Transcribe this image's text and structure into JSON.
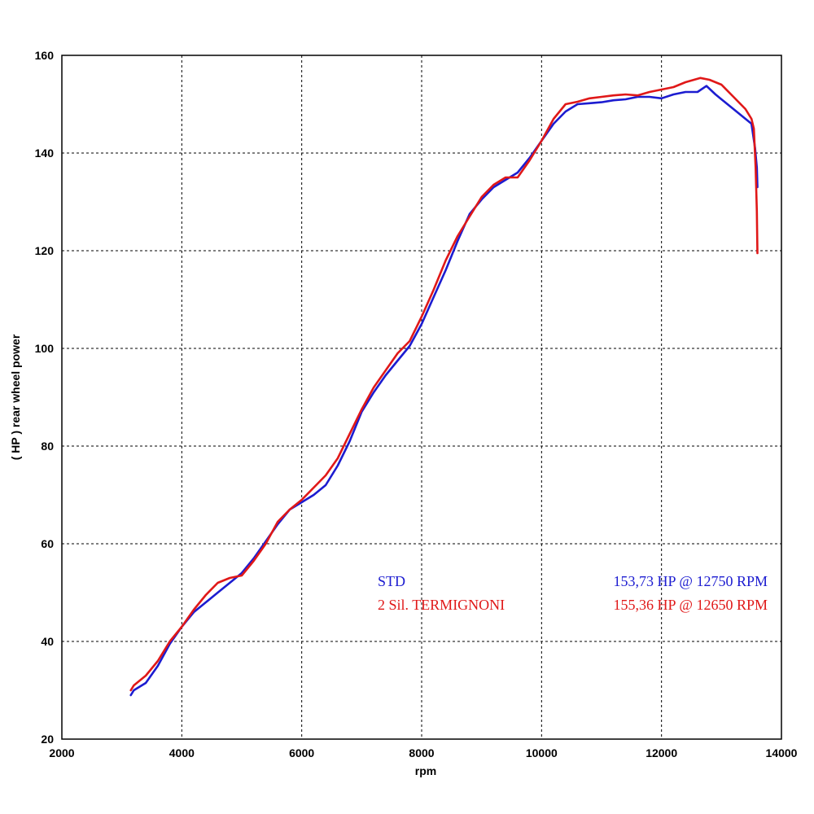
{
  "chart_data": {
    "type": "line",
    "xlabel": "rpm",
    "ylabel": "( HP )  rear wheel power",
    "xlim": [
      2000,
      14000
    ],
    "ylim": [
      20,
      160
    ],
    "xticks": [
      2000,
      4000,
      6000,
      8000,
      10000,
      12000,
      14000
    ],
    "yticks": [
      20,
      40,
      60,
      80,
      100,
      120,
      140,
      160
    ],
    "grid": true,
    "series": [
      {
        "name": "STD",
        "peak_label": "153,73 HP @ 12750 RPM",
        "color": "#1c1cd0",
        "x": [
          3150,
          3200,
          3400,
          3600,
          3800,
          4000,
          4200,
          4400,
          4600,
          4800,
          5000,
          5200,
          5400,
          5600,
          5800,
          6000,
          6200,
          6400,
          6600,
          6800,
          7000,
          7200,
          7400,
          7600,
          7800,
          8000,
          8200,
          8400,
          8600,
          8800,
          9000,
          9200,
          9400,
          9600,
          9800,
          10000,
          10200,
          10400,
          10600,
          10800,
          11000,
          11200,
          11400,
          11600,
          11800,
          12000,
          12200,
          12400,
          12600,
          12750,
          12900,
          13000,
          13200,
          13400,
          13500,
          13560,
          13590,
          13600
        ],
        "values": [
          29,
          30,
          31.5,
          35,
          39.5,
          43,
          46,
          48,
          50,
          52,
          54,
          57,
          60.5,
          64,
          67,
          68.5,
          70,
          72,
          76,
          81,
          87,
          91,
          94.5,
          97.5,
          100.5,
          105,
          110.5,
          116,
          122,
          127.5,
          130.5,
          133,
          134.5,
          136,
          139,
          142.5,
          146,
          148.5,
          150,
          150.2,
          150.4,
          150.8,
          151,
          151.5,
          151.5,
          151.2,
          152,
          152.5,
          152.5,
          153.73,
          152,
          151,
          149,
          147,
          146,
          141,
          137,
          133
        ]
      },
      {
        "name": "2 Sil. TERMIGNONI",
        "peak_label": "155,36 HP @ 12650 RPM",
        "color": "#e01818",
        "x": [
          3150,
          3200,
          3400,
          3600,
          3800,
          4000,
          4200,
          4400,
          4600,
          4800,
          5000,
          5200,
          5400,
          5600,
          5800,
          6000,
          6200,
          6400,
          6600,
          6800,
          7000,
          7200,
          7400,
          7600,
          7800,
          8000,
          8200,
          8400,
          8600,
          8800,
          9000,
          9200,
          9400,
          9600,
          9800,
          10000,
          10200,
          10400,
          10600,
          10800,
          11000,
          11200,
          11400,
          11600,
          11800,
          12000,
          12200,
          12400,
          12650,
          12800,
          13000,
          13200,
          13400,
          13500,
          13540,
          13570,
          13590,
          13600
        ],
        "values": [
          30,
          31,
          33,
          36,
          40,
          43,
          46.5,
          49.5,
          52,
          53,
          53.5,
          56.5,
          60,
          64.5,
          67,
          69,
          71.5,
          74,
          77.5,
          82.5,
          87.5,
          92,
          95.5,
          99,
          101.5,
          106.5,
          112,
          118,
          123,
          127,
          131,
          133.5,
          135,
          135,
          138.5,
          142.5,
          147,
          150,
          150.5,
          151.2,
          151.5,
          151.8,
          152,
          151.8,
          152.5,
          153,
          153.5,
          154.5,
          155.36,
          155,
          154,
          151.5,
          149,
          147,
          145,
          137,
          128,
          119.5
        ]
      }
    ]
  }
}
